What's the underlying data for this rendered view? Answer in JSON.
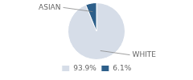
{
  "chart_data": {
    "type": "pie",
    "categories": [
      "WHITE",
      "ASIAN"
    ],
    "values": [
      93.9,
      6.1
    ],
    "value_labels": [
      "93.9%",
      "6.1%"
    ],
    "colors": [
      "#d6dde8",
      "#2d5f8a"
    ],
    "legend": "bottom"
  }
}
